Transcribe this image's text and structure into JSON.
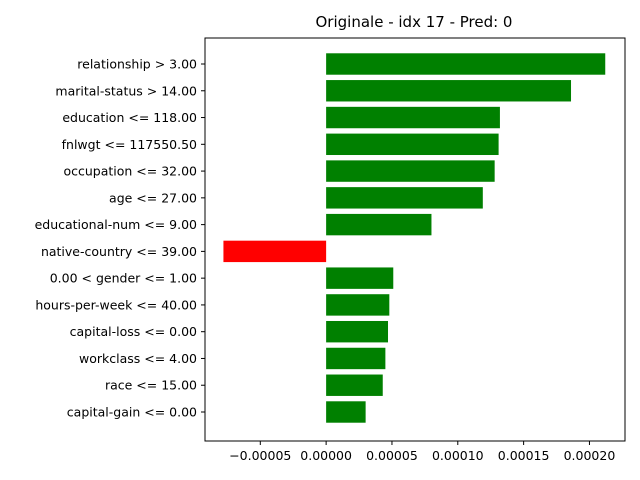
{
  "chart_data": {
    "type": "bar",
    "orientation": "horizontal",
    "title": "Originale - idx 17 - Pred: 0",
    "xlabel": "",
    "ylabel": "",
    "categories": [
      "relationship > 3.00",
      "marital-status > 14.00",
      "education <= 118.00",
      "fnlwgt <= 117550.50",
      "occupation <= 32.00",
      "age <= 27.00",
      "educational-num <= 9.00",
      "native-country <= 39.00",
      "0.00 < gender <= 1.00",
      "hours-per-week <= 40.00",
      "capital-loss <= 0.00",
      "workclass <= 4.00",
      "race <= 15.00",
      "capital-gain <= 0.00"
    ],
    "values": [
      0.000212,
      0.000186,
      0.000132,
      0.000131,
      0.000128,
      0.000119,
      8e-05,
      -7.8e-05,
      5.1e-05,
      4.8e-05,
      4.7e-05,
      4.5e-05,
      4.3e-05,
      3e-05
    ],
    "xlim": [
      -9.2e-05,
      0.000227
    ],
    "xticks": [
      -5e-05,
      0.0,
      5e-05,
      0.0001,
      0.00015,
      0.0002
    ],
    "xtick_labels": [
      "−0.00005",
      "0.00000",
      "0.00005",
      "0.00010",
      "0.00015",
      "0.00020"
    ],
    "colors": {
      "positive": "#008000",
      "negative": "#ff0000"
    },
    "grid": false,
    "legend": "none"
  }
}
